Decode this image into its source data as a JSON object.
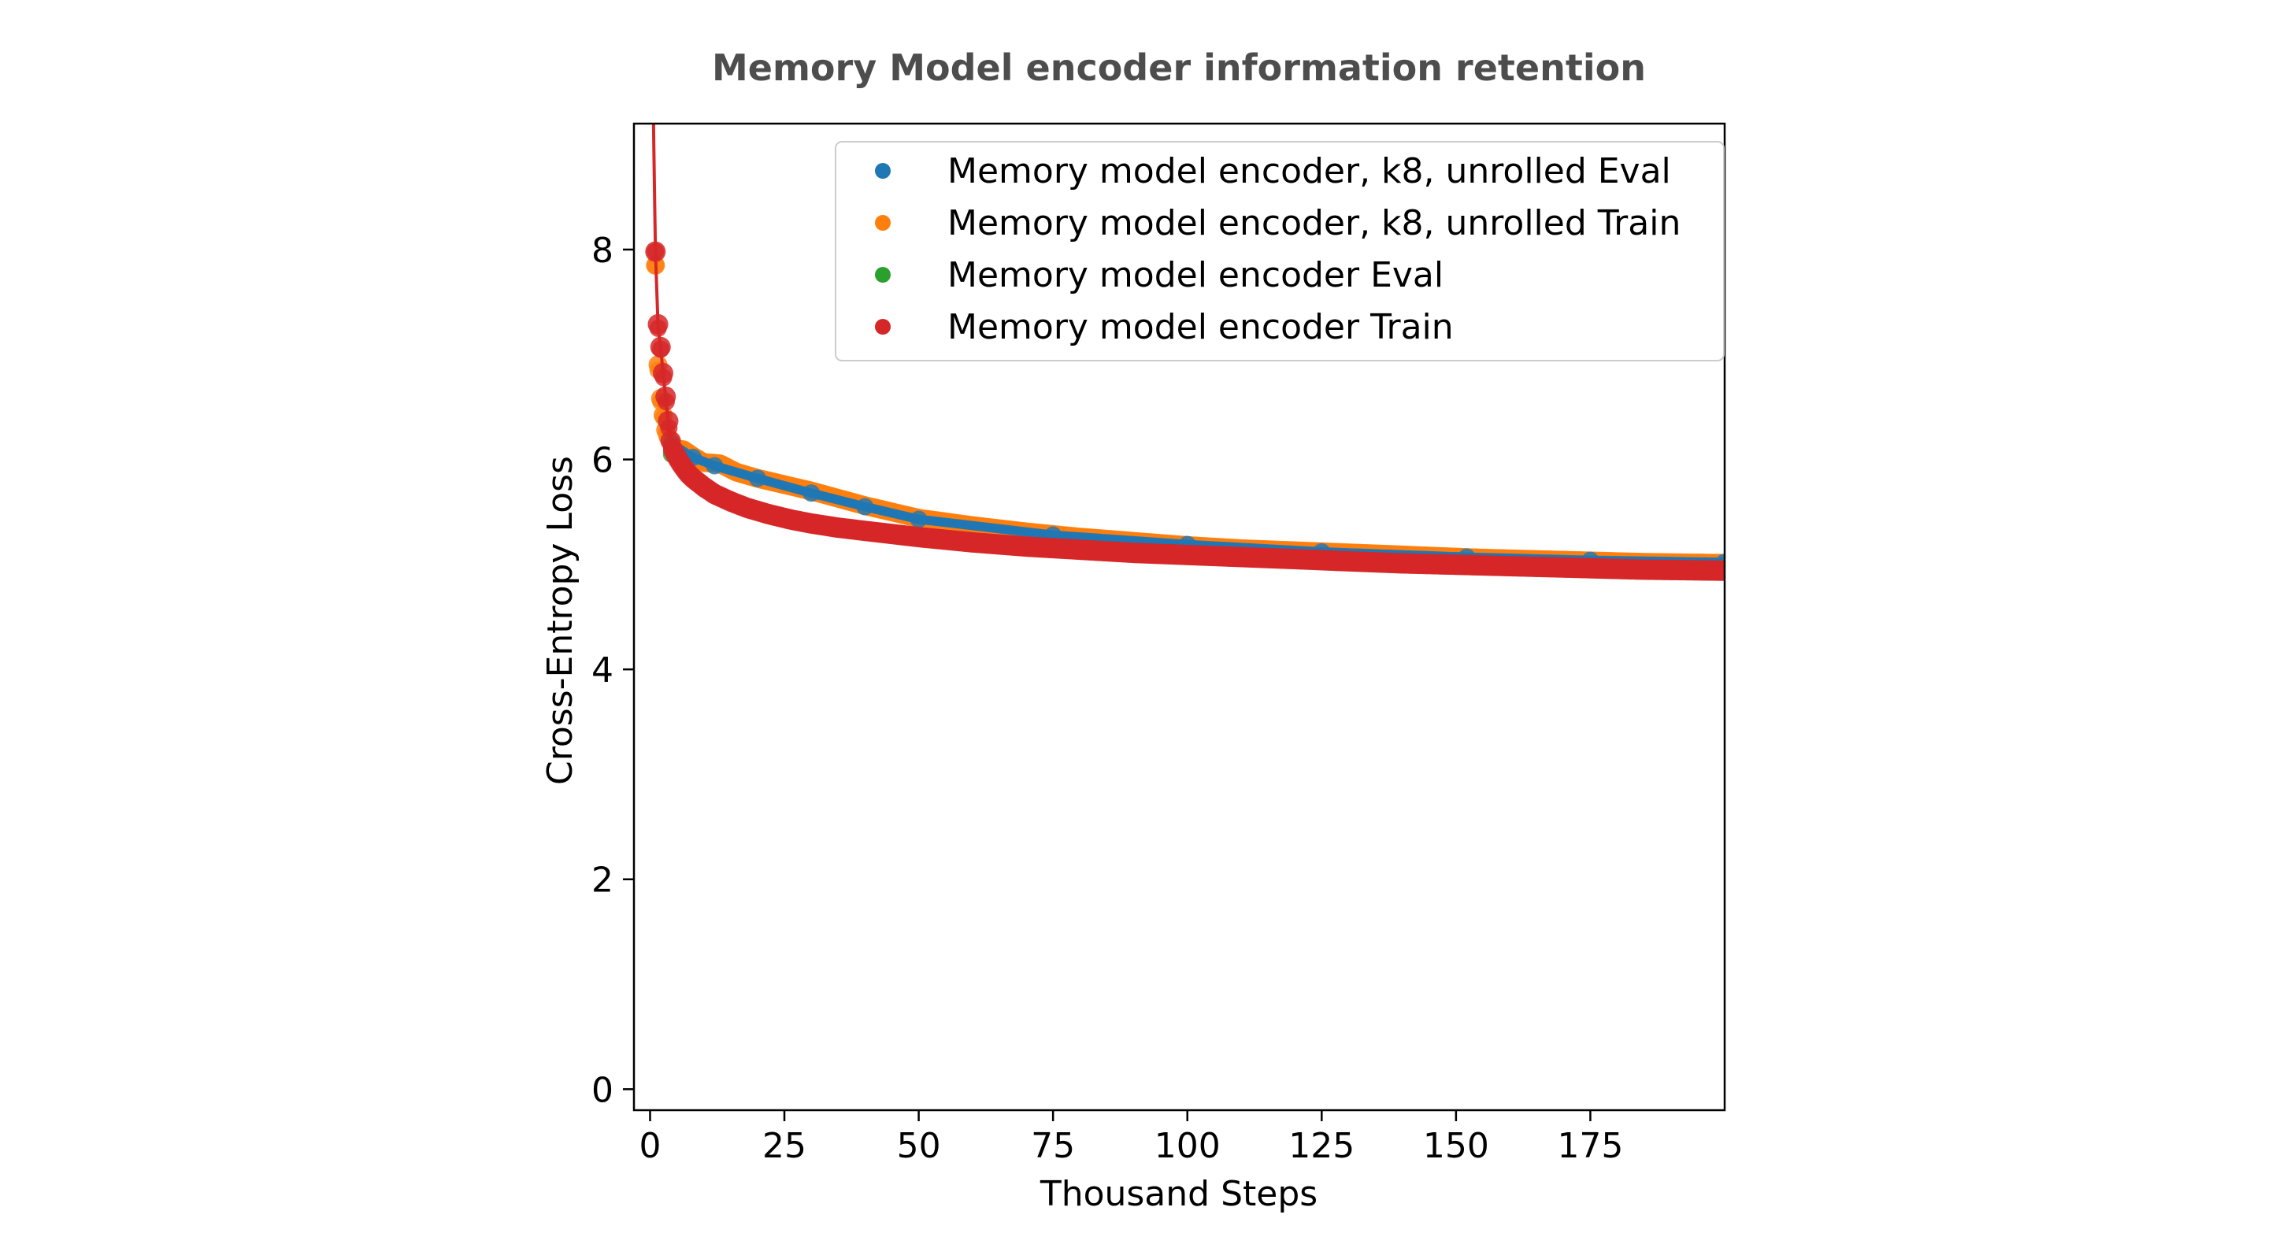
{
  "chart_data": {
    "type": "scatter",
    "title": "Memory Model encoder information retention",
    "xlabel": "Thousand Steps",
    "ylabel": "Cross-Entropy Loss",
    "xlim": [
      -3,
      200
    ],
    "ylim": [
      -0.2,
      9.2
    ],
    "xticks": [
      0,
      25,
      50,
      75,
      100,
      125,
      150,
      175
    ],
    "yticks": [
      0,
      2,
      4,
      6,
      8
    ],
    "grid": false,
    "legend_position": "top-right",
    "series": [
      {
        "name": "Memory model encoder, k8, unrolled Eval",
        "color": "#1f77b4",
        "x": [
          4,
          8,
          12,
          20,
          30,
          40,
          50,
          75,
          100,
          125,
          152,
          175,
          200
        ],
        "y": [
          6.15,
          6.02,
          5.94,
          5.82,
          5.68,
          5.55,
          5.43,
          5.28,
          5.19,
          5.12,
          5.07,
          5.04,
          5.02
        ]
      },
      {
        "name": "Memory model encoder, k8, unrolled Train",
        "color": "#ff7f0e",
        "x": [
          1,
          1.5,
          2,
          2.5,
          3,
          4,
          5,
          6,
          8,
          10,
          13,
          16,
          20,
          25,
          30,
          35,
          40,
          45,
          50,
          60,
          70,
          80,
          90,
          100,
          110,
          125,
          140,
          155,
          170,
          185,
          200
        ],
        "y": [
          7.85,
          6.85,
          6.55,
          6.4,
          6.25,
          6.15,
          6.08,
          6.1,
          6.03,
          5.97,
          5.96,
          5.88,
          5.82,
          5.76,
          5.7,
          5.63,
          5.56,
          5.5,
          5.44,
          5.37,
          5.31,
          5.26,
          5.22,
          5.18,
          5.15,
          5.12,
          5.09,
          5.06,
          5.04,
          5.02,
          5.01
        ]
      },
      {
        "name": "Memory model encoder Eval",
        "color": "#2ca02c",
        "x": [
          4,
          10,
          20,
          30,
          40,
          50,
          75,
          100,
          125,
          150,
          175,
          200
        ],
        "y": [
          6.05,
          5.72,
          5.5,
          5.38,
          5.31,
          5.26,
          5.17,
          5.1,
          5.05,
          5.01,
          4.98,
          4.96
        ]
      },
      {
        "name": "Memory model encoder Train",
        "color": "#d62728",
        "x": [
          1,
          1.5,
          2,
          2.5,
          3,
          3.5,
          4,
          5,
          6,
          7,
          8,
          10,
          12,
          15,
          18,
          22,
          26,
          30,
          35,
          40,
          45,
          50,
          60,
          70,
          80,
          90,
          100,
          110,
          125,
          140,
          155,
          170,
          185,
          200
        ],
        "y": [
          7.98,
          7.25,
          7.05,
          6.78,
          6.55,
          6.3,
          6.12,
          6.02,
          5.94,
          5.87,
          5.82,
          5.74,
          5.67,
          5.6,
          5.54,
          5.48,
          5.43,
          5.39,
          5.35,
          5.32,
          5.29,
          5.26,
          5.21,
          5.17,
          5.14,
          5.11,
          5.09,
          5.07,
          5.04,
          5.01,
          4.99,
          4.97,
          4.95,
          4.94
        ]
      }
    ]
  }
}
